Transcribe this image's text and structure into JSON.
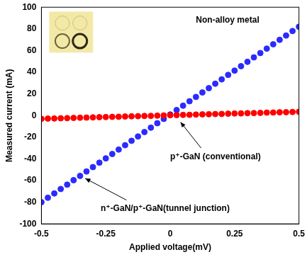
{
  "chart_data": {
    "type": "scatter",
    "annotations": [
      "Non-alloy metal"
    ],
    "x_label": "Applied voltage(mV)",
    "y_label": "Measured current (mA)",
    "xlim": [
      -0.5,
      0.5
    ],
    "xticks": [
      -0.5,
      -0.25,
      0,
      0.25,
      0.5
    ],
    "ylim": [
      -100,
      100
    ],
    "yticks": [
      -100,
      -80,
      -60,
      -40,
      -20,
      0,
      20,
      40,
      60,
      80,
      100
    ],
    "grid": false,
    "x": [
      -0.5,
      -0.475,
      -0.45,
      -0.425,
      -0.4,
      -0.375,
      -0.35,
      -0.325,
      -0.3,
      -0.275,
      -0.25,
      -0.225,
      -0.2,
      -0.175,
      -0.15,
      -0.125,
      -0.1,
      -0.075,
      -0.05,
      -0.025,
      0,
      0.025,
      0.05,
      0.075,
      0.1,
      0.125,
      0.15,
      0.175,
      0.2,
      0.225,
      0.25,
      0.275,
      0.3,
      0.325,
      0.35,
      0.375,
      0.4,
      0.425,
      0.45,
      0.475,
      0.5
    ],
    "series": [
      {
        "name": "p⁺-GaN (conventional)",
        "color": "#ff0000",
        "marker": "circle",
        "values": [
          -3.0,
          -2.8,
          -2.7,
          -2.5,
          -2.4,
          -2.2,
          -2.0,
          -1.9,
          -1.7,
          -1.5,
          -1.4,
          -1.2,
          -1.1,
          -0.9,
          -0.7,
          -0.6,
          -0.4,
          -0.3,
          -0.1,
          0.1,
          0.3,
          0.4,
          0.6,
          0.7,
          0.9,
          1.1,
          1.2,
          1.4,
          1.5,
          1.7,
          1.9,
          2.0,
          2.2,
          2.3,
          2.5,
          2.7,
          2.8,
          3.0,
          3.1,
          3.3,
          3.5
        ]
      },
      {
        "name": "n⁺-GaN/p⁺-GaN(tunnel junction)",
        "color": "#2b2bff",
        "marker": "circle",
        "values": [
          -80,
          -75.9,
          -71.9,
          -67.8,
          -63.8,
          -59.7,
          -55.7,
          -51.6,
          -47.6,
          -43.5,
          -39.5,
          -35.5,
          -31.4,
          -27.4,
          -23.3,
          -19.3,
          -15.2,
          -11.2,
          -7.1,
          -3.1,
          1.0,
          5.1,
          9.1,
          13.2,
          17.2,
          21.3,
          25.3,
          29.4,
          33.4,
          37.5,
          41.5,
          45.6,
          49.6,
          53.7,
          57.7,
          61.8,
          65.8,
          69.9,
          73.9,
          78.0,
          82.0
        ]
      }
    ]
  }
}
